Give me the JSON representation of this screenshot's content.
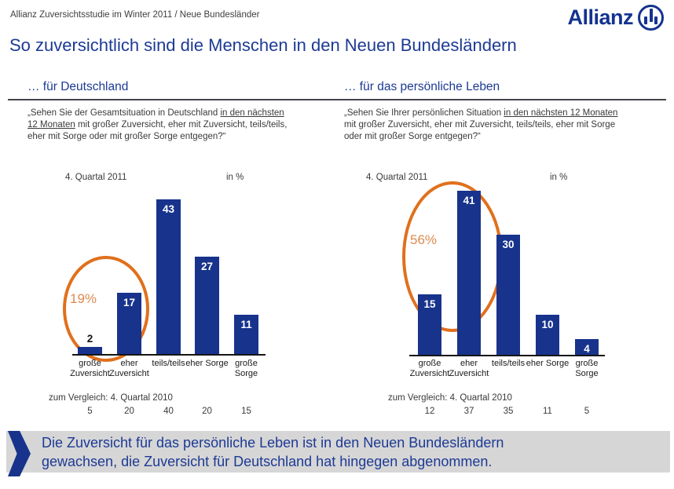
{
  "header": {
    "label": "Allianz Zuversichtsstudie im Winter 2011 / Neue Bundesländer"
  },
  "brand": {
    "name": "Allianz",
    "logo_icon": "allianz-eagle-icon"
  },
  "title": "So zuversichtlich sind die Menschen in den Neuen Bundesländern",
  "chart_data": [
    {
      "type": "bar",
      "section_heading": "… für Deutschland",
      "question_parts": [
        {
          "text": "„Sehen Sie der Gesamtsituation in Deutschland ",
          "underline": false
        },
        {
          "text": "in den nächsten 12 Monaten",
          "underline": true
        },
        {
          "text": " mit großer Zuversicht, eher mit Zuversicht, teils/teils, eher mit Sorge oder mit großer Sorge entgegen?“",
          "underline": false
        }
      ],
      "period_label": "4. Quartal 2011",
      "unit_label": "in %",
      "categories": [
        "große Zuversicht",
        "eher Zuversicht",
        "teils/teils",
        "eher Sorge",
        "große Sorge"
      ],
      "values": [
        2,
        17,
        43,
        27,
        11
      ],
      "ylim": [
        0,
        45
      ],
      "grid": false,
      "highlight": {
        "label": "19%",
        "covers_categories": [
          "große Zuversicht",
          "eher Zuversicht"
        ],
        "shape": "orange-ellipse"
      },
      "comparison": {
        "label": "zum Vergleich: 4. Quartal 2010",
        "values": [
          5,
          20,
          40,
          20,
          15
        ]
      }
    },
    {
      "type": "bar",
      "section_heading": "… für das persönliche Leben",
      "question_parts": [
        {
          "text": "„Sehen Sie Ihrer persönlichen Situation ",
          "underline": false
        },
        {
          "text": "in den nächsten 12 Monaten",
          "underline": true
        },
        {
          "text": " mit großer Zuversicht, eher mit Zuversicht, teils/teils, eher mit Sorge oder mit großer Sorge entgegen?“",
          "underline": false
        }
      ],
      "period_label": "4. Quartal 2011",
      "unit_label": "in %",
      "categories": [
        "große Zuversicht",
        "eher Zuversicht",
        "teils/teils",
        "eher Sorge",
        "große Sorge"
      ],
      "values": [
        15,
        41,
        30,
        10,
        4
      ],
      "ylim": [
        0,
        45
      ],
      "grid": false,
      "highlight": {
        "label": "56%",
        "covers_categories": [
          "große Zuversicht",
          "eher Zuversicht"
        ],
        "shape": "orange-ellipse"
      },
      "comparison": {
        "label": "zum Vergleich: 4. Quartal 2010",
        "values": [
          12,
          37,
          35,
          11,
          5
        ]
      }
    }
  ],
  "footer": {
    "lines": [
      "Die Zuversicht für das persönliche Leben ist in den Neuen Bundesländern",
      "gewachsen, die Zuversicht für Deutschland hat hingegen abgenommen."
    ]
  },
  "colors": {
    "bar_blue": "#17338c",
    "title_blue": "#1d3a94",
    "accent_orange": "#e0701d",
    "highlight_text_orange": "#dc8a4e",
    "banner_bg": "#d6d6d6",
    "axis_black": "#151515"
  }
}
